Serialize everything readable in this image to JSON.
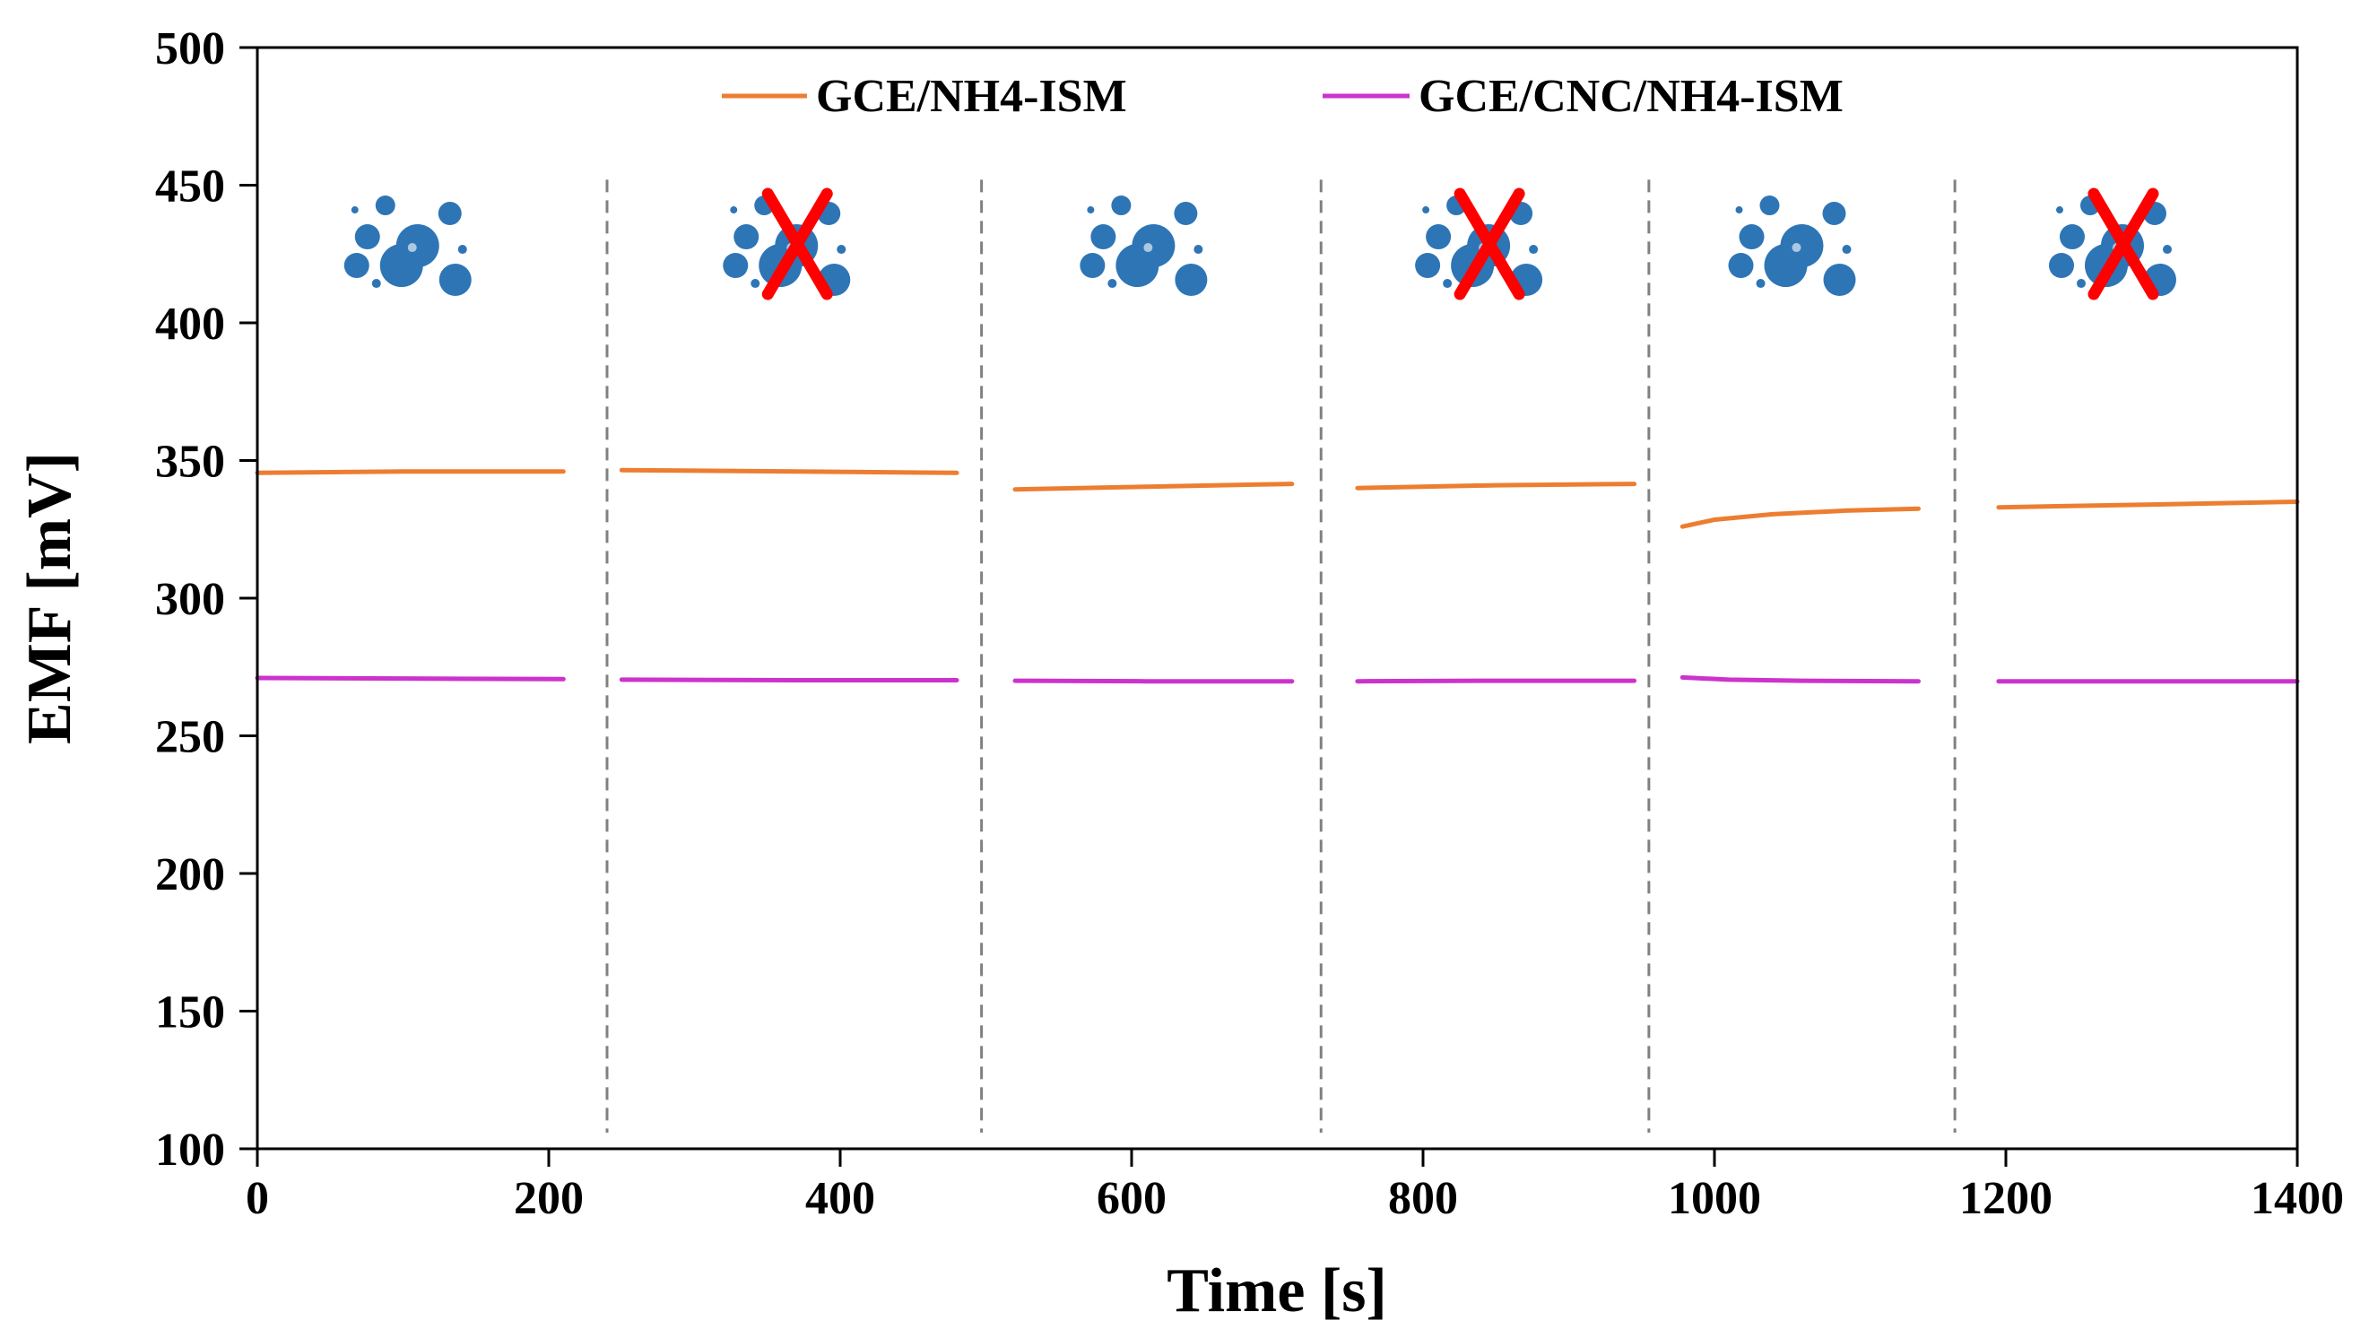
{
  "chart_data": {
    "type": "line",
    "title": "",
    "xlabel": "Time [s]",
    "ylabel": "EMF [mV]",
    "xlim": [
      0,
      1400
    ],
    "ylim": [
      100,
      500
    ],
    "x_ticks": [
      0,
      200,
      400,
      600,
      800,
      1000,
      1200,
      1400
    ],
    "y_ticks": [
      100,
      150,
      200,
      250,
      300,
      350,
      400,
      450,
      500
    ],
    "grid": false,
    "legend_position": "top",
    "phase_boundaries": [
      240,
      497,
      730,
      955,
      1165
    ],
    "phases": [
      {
        "condition": "with water layer",
        "crossed": false,
        "x_center": 110
      },
      {
        "condition": "without water layer",
        "crossed": true,
        "x_center": 370
      },
      {
        "condition": "with water layer",
        "crossed": false,
        "x_center": 615
      },
      {
        "condition": "without water layer",
        "crossed": true,
        "x_center": 845
      },
      {
        "condition": "with water layer",
        "crossed": false,
        "x_center": 1060
      },
      {
        "condition": "without water layer",
        "crossed": true,
        "x_center": 1280
      }
    ],
    "series": [
      {
        "name": "GCE/NH4-ISM",
        "color": "#ED7D31",
        "segments": [
          [
            [
              0,
              345.5
            ],
            [
              100,
              346
            ],
            [
              210,
              346
            ]
          ],
          [
            [
              250,
              346.5
            ],
            [
              370,
              346
            ],
            [
              480,
              345.5
            ]
          ],
          [
            [
              520,
              339.5
            ],
            [
              610,
              340.5
            ],
            [
              710,
              341.5
            ]
          ],
          [
            [
              755,
              340
            ],
            [
              850,
              341
            ],
            [
              945,
              341.5
            ]
          ],
          [
            [
              978,
              326
            ],
            [
              1000,
              328.5
            ],
            [
              1040,
              330.5
            ],
            [
              1090,
              331.8
            ],
            [
              1140,
              332.5
            ]
          ],
          [
            [
              1195,
              333
            ],
            [
              1300,
              334
            ],
            [
              1400,
              335
            ]
          ]
        ]
      },
      {
        "name": "GCE/CNC/NH4-ISM",
        "color": "#CC33CC",
        "segments": [
          [
            [
              0,
              271
            ],
            [
              100,
              270.8
            ],
            [
              210,
              270.6
            ]
          ],
          [
            [
              250,
              270.4
            ],
            [
              370,
              270.2
            ],
            [
              480,
              270.2
            ]
          ],
          [
            [
              520,
              270
            ],
            [
              610,
              269.8
            ],
            [
              710,
              269.8
            ]
          ],
          [
            [
              755,
              269.8
            ],
            [
              850,
              270
            ],
            [
              945,
              270
            ]
          ],
          [
            [
              978,
              271.2
            ],
            [
              1010,
              270.4
            ],
            [
              1060,
              270
            ],
            [
              1140,
              269.8
            ]
          ],
          [
            [
              1195,
              269.8
            ],
            [
              1300,
              269.8
            ],
            [
              1400,
              269.8
            ]
          ]
        ]
      }
    ]
  },
  "colors": {
    "bubble": "#2E75B6",
    "cross": "#FF0000",
    "divider": "#808080"
  }
}
